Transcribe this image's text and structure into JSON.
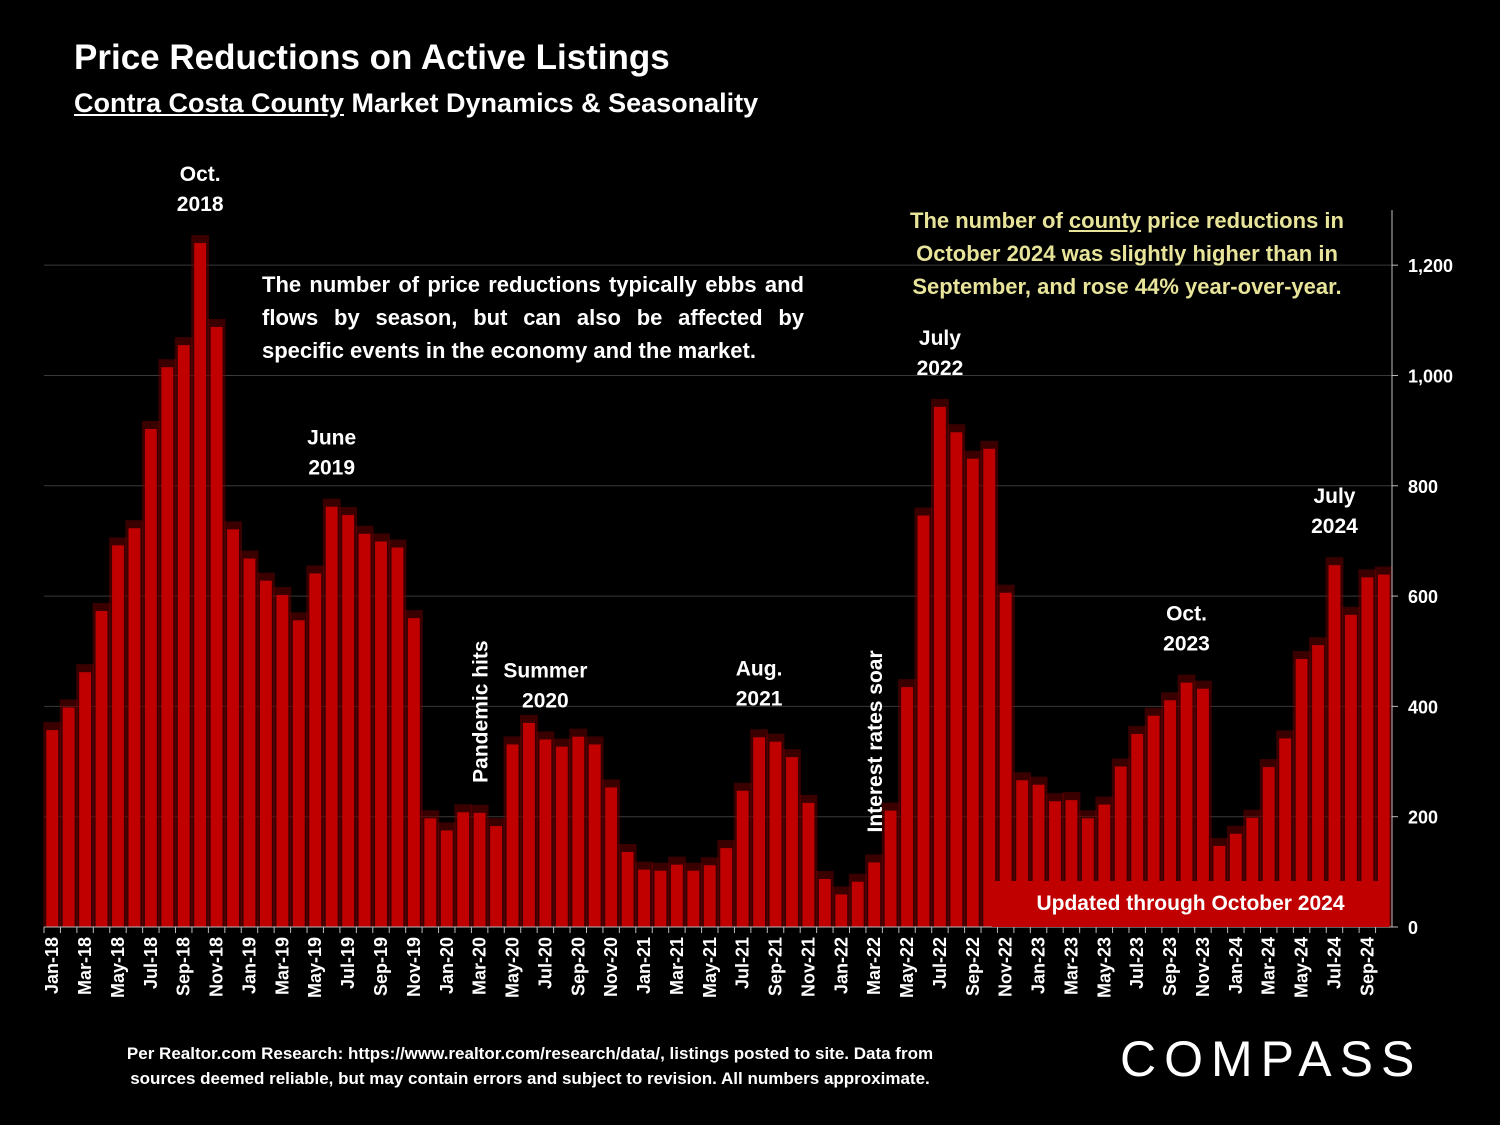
{
  "header": {
    "title": "Price Reductions on Active Listings",
    "subtitle_underlined": "Contra Costa County",
    "subtitle_rest": " Market Dynamics & Seasonality"
  },
  "notes": {
    "left": "The number of price reductions typically ebbs and flows by season, but can also be affected by specific events in the economy and the market.",
    "right_pre": "The number of ",
    "right_underlined": "county",
    "right_post": " price reductions in October 2024 was slightly higher than in September, and rose 44% year-over-year.",
    "updated": "Updated through October 2024"
  },
  "footer": {
    "source": "Per Realtor.com Research:  https://www.realtor.com/research/data/, listings posted to site. Data from sources deemed reliable, but may contain errors and subject to revision. All numbers approximate.",
    "logo": "COMPASS"
  },
  "colors": {
    "bar": "#c00000",
    "bar_shadow": "#6a0000",
    "background": "#000000",
    "note_highlight": "#e8e49a"
  },
  "chart_data": {
    "type": "bar",
    "title": "Price Reductions on Active Listings",
    "ylim": [
      0,
      1300
    ],
    "yticks": [
      0,
      200,
      400,
      600,
      800,
      1000,
      1200
    ],
    "ytick_labels": [
      "0",
      "200",
      "400",
      "600",
      "800",
      "1,000",
      "1,200"
    ],
    "y_axis_position": "right",
    "grid": true,
    "categories": [
      "Jan-18",
      "Feb-18",
      "Mar-18",
      "Apr-18",
      "May-18",
      "Jun-18",
      "Jul-18",
      "Aug-18",
      "Sep-18",
      "Oct-18",
      "Nov-18",
      "Dec-18",
      "Jan-19",
      "Feb-19",
      "Mar-19",
      "Apr-19",
      "May-19",
      "Jun-19",
      "Jul-19",
      "Aug-19",
      "Sep-19",
      "Oct-19",
      "Nov-19",
      "Dec-19",
      "Jan-20",
      "Feb-20",
      "Mar-20",
      "Apr-20",
      "May-20",
      "Jun-20",
      "Jul-20",
      "Aug-20",
      "Sep-20",
      "Oct-20",
      "Nov-20",
      "Dec-20",
      "Jan-21",
      "Feb-21",
      "Mar-21",
      "Apr-21",
      "May-21",
      "Jun-21",
      "Jul-21",
      "Aug-21",
      "Sep-21",
      "Oct-21",
      "Nov-21",
      "Dec-21",
      "Jan-22",
      "Feb-22",
      "Mar-22",
      "Apr-22",
      "May-22",
      "Jun-22",
      "Jul-22",
      "Aug-22",
      "Sep-22",
      "Oct-22",
      "Nov-22",
      "Dec-22",
      "Jan-23",
      "Feb-23",
      "Mar-23",
      "Apr-23",
      "May-23",
      "Jun-23",
      "Jul-23",
      "Aug-23",
      "Sep-23",
      "Oct-23",
      "Nov-23",
      "Dec-23",
      "Jan-24",
      "Feb-24",
      "Mar-24",
      "Apr-24",
      "May-24",
      "Jun-24",
      "Jul-24",
      "Aug-24",
      "Sep-24",
      "Oct-24"
    ],
    "values": [
      357,
      398,
      462,
      573,
      692,
      723,
      903,
      1015,
      1055,
      1240,
      1088,
      721,
      668,
      628,
      602,
      556,
      641,
      762,
      747,
      713,
      699,
      688,
      560,
      197,
      175,
      208,
      207,
      183,
      331,
      370,
      340,
      327,
      345,
      331,
      253,
      136,
      104,
      102,
      113,
      102,
      112,
      143,
      247,
      344,
      336,
      308,
      225,
      87,
      59,
      82,
      117,
      211,
      435,
      746,
      943,
      897,
      849,
      867,
      606,
      266,
      258,
      228,
      230,
      197,
      222,
      291,
      350,
      383,
      411,
      443,
      432,
      147,
      169,
      198,
      290,
      342,
      486,
      511,
      656,
      566,
      634,
      639
    ],
    "xtick_labels_every": 2,
    "annotations": [
      {
        "text": [
          "Oct.",
          "2018"
        ],
        "at": "Oct-18"
      },
      {
        "text": [
          "June",
          "2019"
        ],
        "at": "Jun-19"
      },
      {
        "text": [
          "Summer",
          "2020"
        ],
        "at": "Jul-20"
      },
      {
        "text": [
          "Aug.",
          "2021"
        ],
        "at": "Aug-21"
      },
      {
        "text": [
          "July",
          "2022"
        ],
        "at": "Jul-22"
      },
      {
        "text": [
          "Oct.",
          "2023"
        ],
        "at": "Oct-23"
      },
      {
        "text": [
          "July",
          "2024"
        ],
        "at": "Jul-24"
      },
      {
        "text": [
          "Pandemic hits"
        ],
        "at": "Mar-20",
        "vertical": true
      },
      {
        "text": [
          "Interest rates soar"
        ],
        "at": "Mar-22",
        "vertical": true
      }
    ]
  }
}
